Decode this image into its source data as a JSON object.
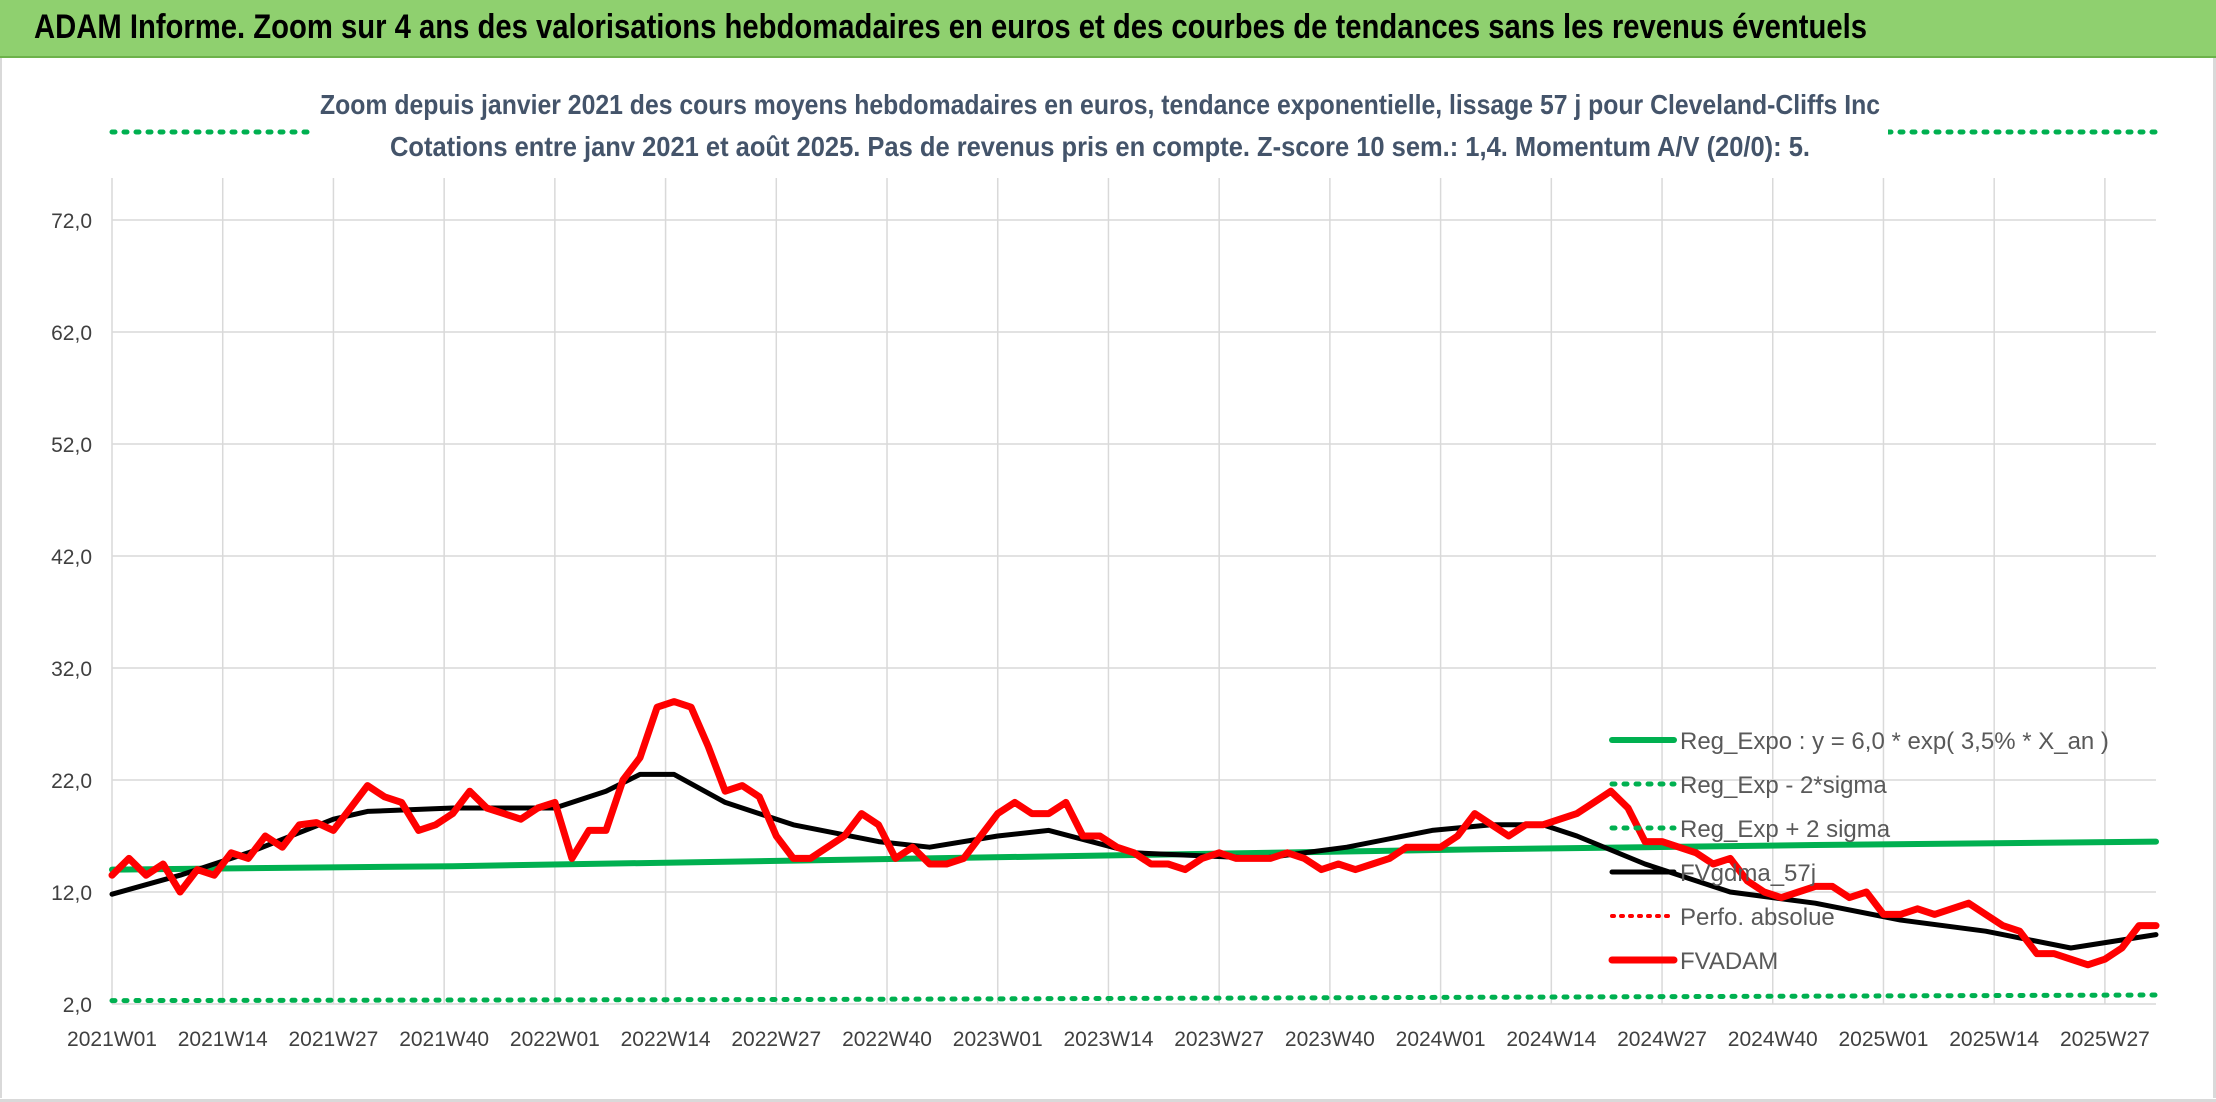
{
  "header": {
    "title": "ADAM Informe. Zoom sur 4 ans des valorisations hebdomadaires en euros et des courbes de tendances sans les revenus éventuels"
  },
  "colors": {
    "header_bg": "#8fd06f",
    "reg_expo": "#00b050",
    "fvadam": "#ff0000",
    "fvgdma": "#000000",
    "perfo": "#ff0000",
    "grid": "#d9d9d9"
  },
  "chart_data": {
    "type": "line",
    "title": "Zoom depuis janvier 2021 des cours moyens hebdomadaires en euros, tendance exponentielle, lissage 57 j pour Cleveland-Cliffs Inc",
    "subtitle": "Cotations entre janv 2021 et août 2025. Pas de revenus pris en compte. Z-score 10 sem.: 1,4. Momentum A/V (20/0): 5.",
    "xlabel": "",
    "ylabel": "",
    "ylim": [
      2,
      75
    ],
    "yticks": [
      "72,0",
      "62,0",
      "52,0",
      "42,0",
      "32,0",
      "22,0",
      "12,0",
      "2,0"
    ],
    "ytick_values": [
      72,
      62,
      52,
      42,
      32,
      22,
      12,
      2
    ],
    "xticks": [
      "2021W01",
      "2021W14",
      "2021W27",
      "2021W40",
      "2022W01",
      "2022W14",
      "2022W27",
      "2022W40",
      "2023W01",
      "2023W14",
      "2023W27",
      "2023W40",
      "2024W01",
      "2024W14",
      "2024W27",
      "2024W40",
      "2025W01",
      "2025W14",
      "2025W27"
    ],
    "xtick_weeks": [
      0,
      13,
      26,
      39,
      52,
      65,
      78,
      91,
      104,
      117,
      130,
      143,
      156,
      169,
      182,
      195,
      208,
      221,
      234
    ],
    "x_max_week": 240,
    "grid": true,
    "legend": {
      "placement": "right",
      "entries": [
        {
          "key": "reg_expo",
          "label": "Reg_Expo : y = 6,0 * exp( 3,5% *  X_an )",
          "style": "solid-green"
        },
        {
          "key": "reg_lo",
          "label": "Reg_Exp - 2*sigma",
          "style": "dotted-green"
        },
        {
          "key": "reg_hi",
          "label": "Reg_Exp + 2 sigma",
          "style": "dotted-green"
        },
        {
          "key": "fvgdma",
          "label": "FVgdma_57j",
          "style": "solid-black"
        },
        {
          "key": "perfo",
          "label": "Perfo. absolue",
          "style": "dotted-red"
        },
        {
          "key": "fvadam",
          "label": "FVADAM",
          "style": "solid-red"
        }
      ]
    },
    "series": [
      {
        "key": "reg_expo",
        "name": "Reg_Expo : y = 6,0 * exp( 3,5% *  X_an )",
        "x": [
          0,
          40,
          80,
          120,
          160,
          200,
          240
        ],
        "y": [
          14.0,
          14.3,
          14.8,
          15.3,
          15.8,
          16.2,
          16.5
        ]
      },
      {
        "key": "reg_lo",
        "name": "Reg_Exp - 2*sigma",
        "x": [
          0,
          80,
          160,
          240
        ],
        "y": [
          2.3,
          2.4,
          2.6,
          2.8
        ]
      },
      {
        "key": "reg_hi",
        "name": "Reg_Exp + 2 sigma",
        "x": [
          0,
          240
        ],
        "y": [
          79.0,
          79.0
        ]
      },
      {
        "key": "fvgdma",
        "name": "FVgdma_57j",
        "x": [
          0,
          8,
          16,
          26,
          30,
          40,
          52,
          58,
          62,
          66,
          72,
          80,
          90,
          96,
          104,
          110,
          120,
          135,
          145,
          155,
          162,
          168,
          172,
          180,
          190,
          200,
          210,
          220,
          230,
          240
        ],
        "y": [
          11.8,
          13.5,
          15.5,
          18.5,
          19.2,
          19.5,
          19.5,
          21.0,
          22.5,
          22.5,
          20.0,
          18.0,
          16.5,
          16.0,
          17.0,
          17.5,
          15.5,
          15.0,
          16.0,
          17.5,
          18.0,
          18.0,
          17.0,
          14.5,
          12.0,
          11.0,
          9.5,
          8.5,
          7.0,
          8.2
        ]
      },
      {
        "key": "fvadam",
        "name": "FVADAM",
        "x": [
          0,
          2,
          4,
          6,
          8,
          10,
          12,
          14,
          16,
          18,
          20,
          22,
          24,
          26,
          28,
          30,
          32,
          34,
          36,
          38,
          40,
          42,
          44,
          46,
          48,
          50,
          52,
          54,
          56,
          58,
          60,
          62,
          64,
          66,
          68,
          70,
          72,
          74,
          76,
          78,
          80,
          82,
          84,
          86,
          88,
          90,
          92,
          94,
          96,
          98,
          100,
          102,
          104,
          106,
          108,
          110,
          112,
          114,
          116,
          118,
          120,
          122,
          124,
          126,
          128,
          130,
          132,
          134,
          136,
          138,
          140,
          142,
          144,
          146,
          148,
          150,
          152,
          154,
          156,
          158,
          160,
          162,
          164,
          166,
          168,
          170,
          172,
          174,
          176,
          178,
          180,
          182,
          184,
          186,
          188,
          190,
          192,
          194,
          196,
          198,
          200,
          202,
          204,
          206,
          208,
          210,
          212,
          214,
          216,
          218,
          220,
          222,
          224,
          226,
          228,
          230,
          232,
          234,
          236,
          238,
          240
        ],
        "y": [
          13.5,
          15.0,
          13.5,
          14.5,
          12.0,
          14.0,
          13.5,
          15.5,
          15.0,
          17.0,
          16.0,
          18.0,
          18.2,
          17.5,
          19.5,
          21.5,
          20.5,
          20.0,
          17.5,
          18.0,
          19.0,
          21.0,
          19.5,
          19.0,
          18.5,
          19.5,
          20.0,
          15.0,
          17.5,
          17.5,
          22.0,
          24.0,
          28.5,
          29.0,
          28.5,
          25.0,
          21.0,
          21.5,
          20.5,
          17.0,
          15.0,
          15.0,
          16.0,
          17.0,
          19.0,
          18.0,
          15.0,
          16.0,
          14.5,
          14.5,
          15.0,
          17.0,
          19.0,
          20.0,
          19.0,
          19.0,
          20.0,
          17.0,
          17.0,
          16.0,
          15.5,
          14.5,
          14.5,
          14.0,
          15.0,
          15.5,
          15.0,
          15.0,
          15.0,
          15.5,
          15.0,
          14.0,
          14.5,
          14.0,
          14.5,
          15.0,
          16.0,
          16.0,
          16.0,
          17.0,
          19.0,
          18.0,
          17.0,
          18.0,
          18.0,
          18.5,
          19.0,
          20.0,
          21.0,
          19.5,
          16.5,
          16.5,
          16.0,
          15.5,
          14.5,
          15.0,
          13.0,
          12.0,
          11.5,
          12.0,
          12.5,
          12.5,
          11.5,
          12.0,
          10.0,
          10.0,
          10.5,
          10.0,
          10.5,
          11.0,
          10.0,
          9.0,
          8.5,
          6.5,
          6.5,
          6.0,
          5.5,
          6.0,
          7.0,
          9.0,
          9.0
        ]
      }
    ]
  }
}
